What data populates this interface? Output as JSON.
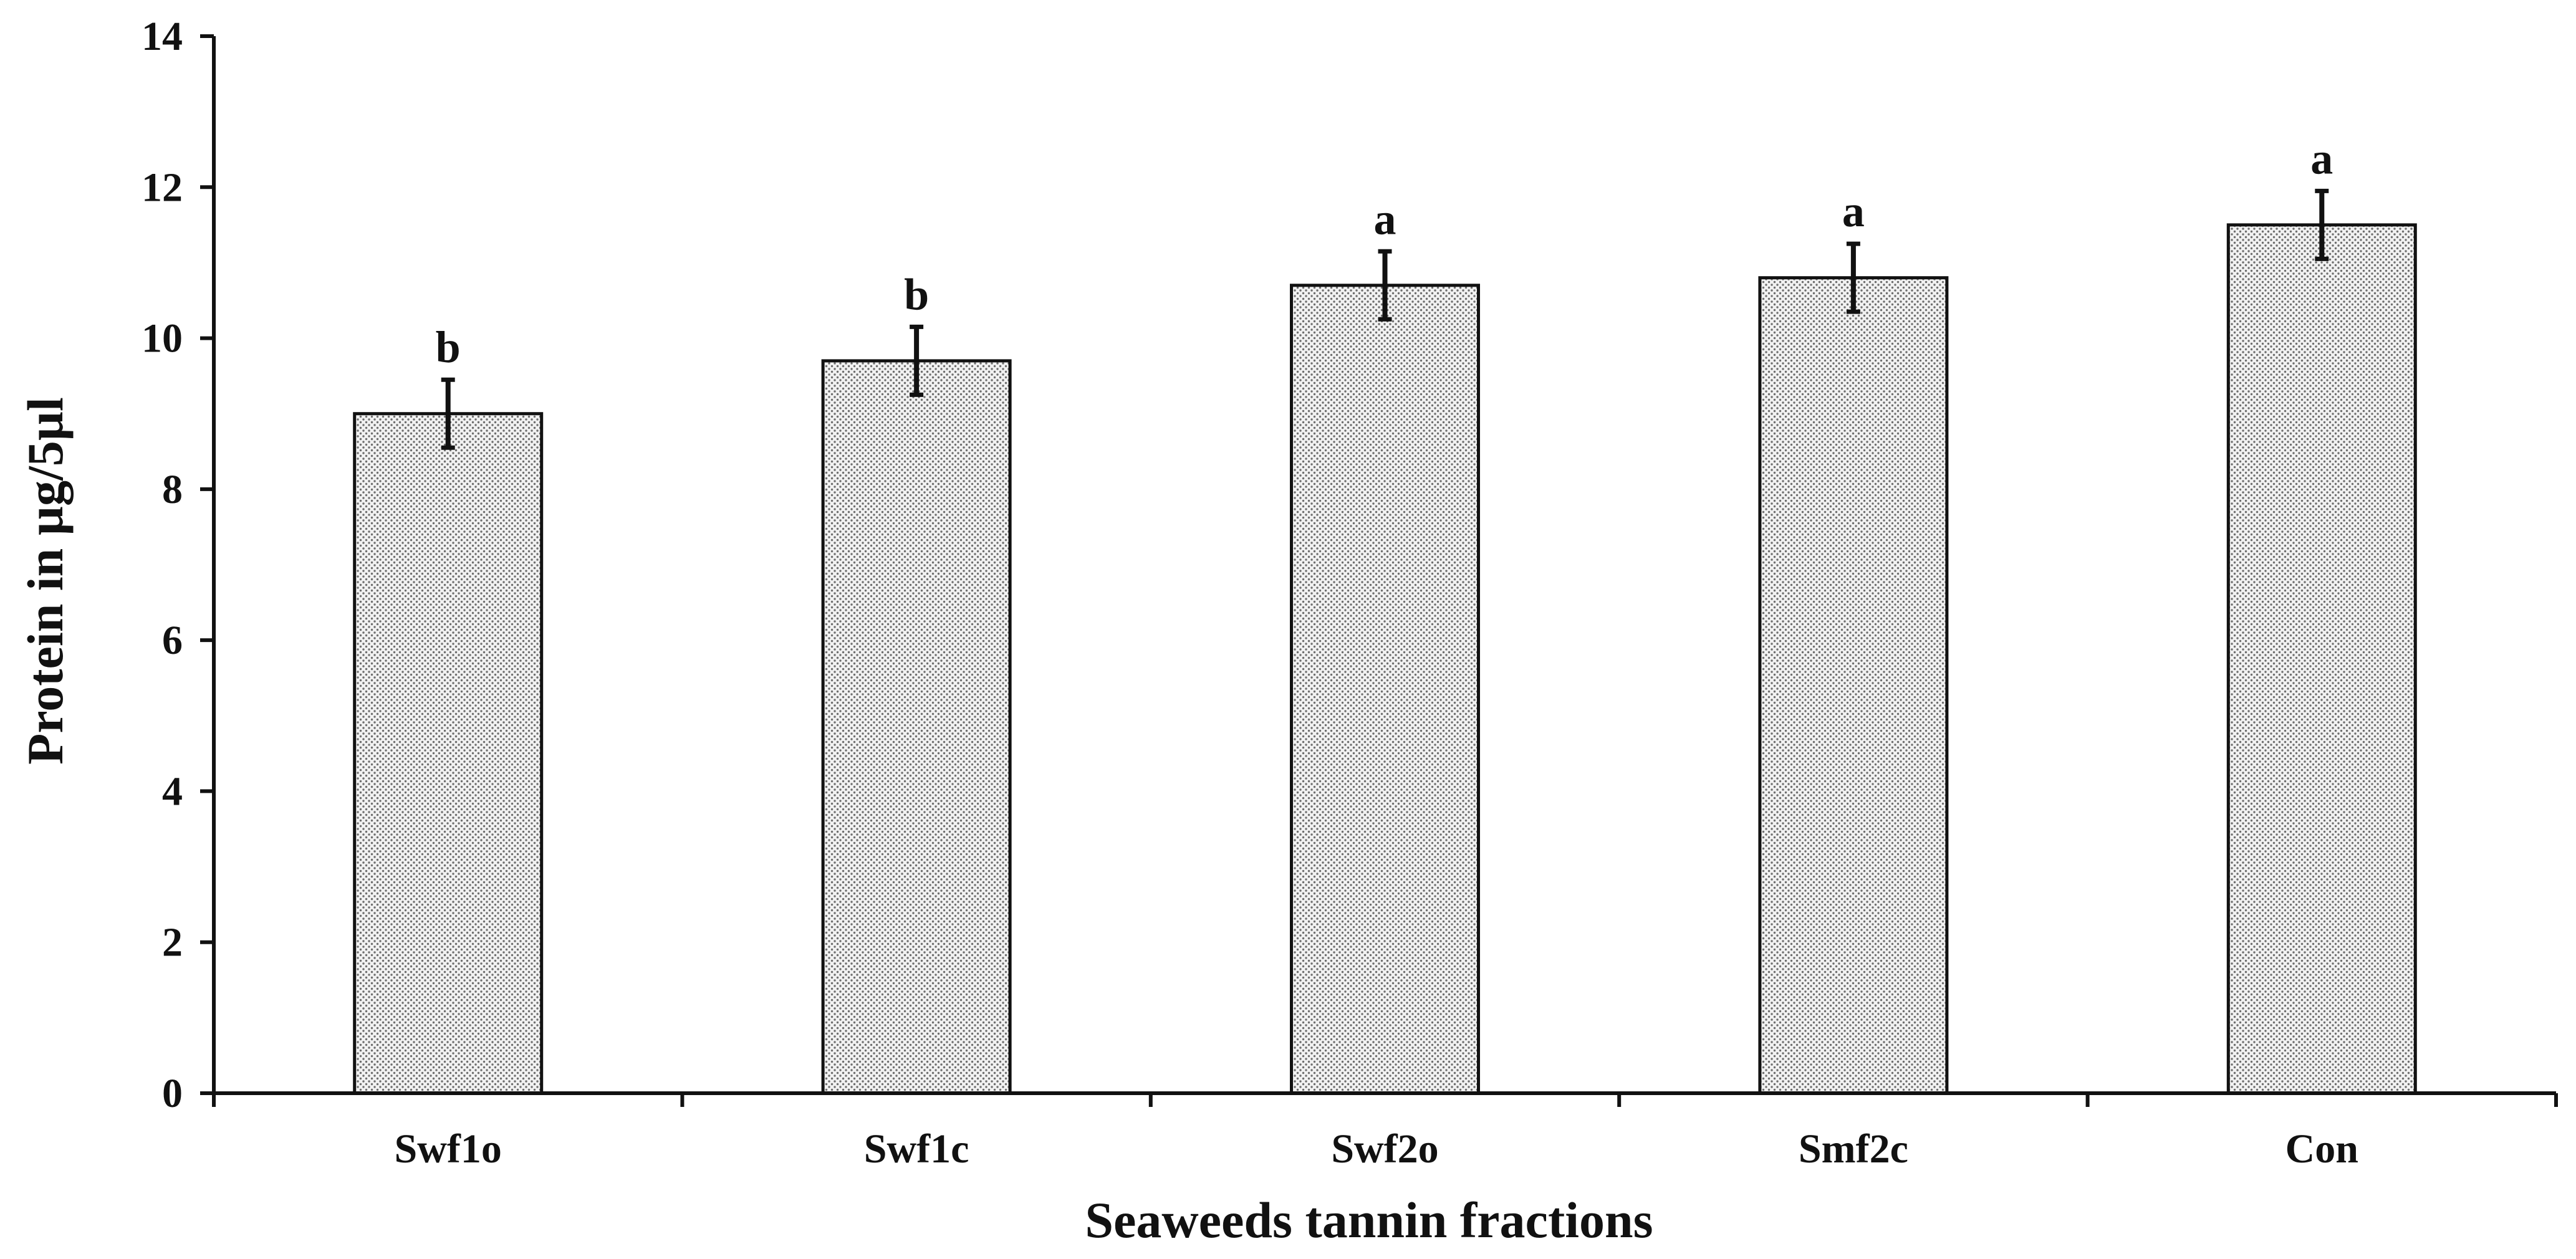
{
  "chart_data": {
    "type": "bar",
    "title": "",
    "xlabel": "Seaweeds tannin fractions",
    "ylabel": "Protein in µg/5µl",
    "ylim": [
      0,
      14
    ],
    "yticks": [
      0,
      2,
      4,
      6,
      8,
      10,
      12,
      14
    ],
    "ytick_labels": [
      "0",
      "2",
      "4",
      "6",
      "8",
      "10",
      "12",
      "14"
    ],
    "categories": [
      "Swf1o",
      "Swf1c",
      "Swf2o",
      "Smf2c",
      "Con"
    ],
    "values": [
      9.0,
      9.7,
      10.7,
      10.8,
      11.5
    ],
    "errors": [
      0.45,
      0.45,
      0.45,
      0.45,
      0.45
    ],
    "significance_letters": [
      "b",
      "b",
      "a",
      "a",
      "a"
    ],
    "grid": false,
    "legend": "none"
  },
  "colors": {
    "bar_fill": "#f2f2f2",
    "bar_dots": "#6e6e6e",
    "bar_edge": "#111111",
    "axis": "#111111",
    "text": "#111111"
  }
}
